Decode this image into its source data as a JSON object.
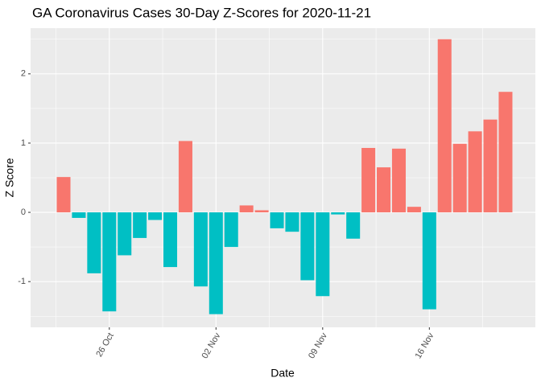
{
  "chart_data": {
    "type": "bar",
    "title": "GA Coronavirus Cases 30-Day Z-Scores for 2020-11-21",
    "x_label": "Date",
    "y_label": "Z Score",
    "categories": [
      null,
      null,
      null,
      "26 Oct",
      null,
      null,
      null,
      null,
      null,
      null,
      "02 Nov",
      null,
      null,
      null,
      null,
      null,
      null,
      "09 Nov",
      null,
      null,
      null,
      null,
      null,
      null,
      "16 Nov",
      null,
      null,
      null,
      null,
      null
    ],
    "values": [
      0.51,
      -0.08,
      -0.88,
      -1.43,
      -0.62,
      -0.37,
      -0.11,
      -0.79,
      1.03,
      -1.07,
      -1.47,
      -0.5,
      0.1,
      0.03,
      -0.23,
      -0.28,
      -0.98,
      -1.21,
      -0.03,
      -0.38,
      0.93,
      0.65,
      0.92,
      0.08,
      -1.4,
      2.5,
      0.99,
      1.17,
      1.34,
      1.74
    ],
    "positive_color": "#F8766D",
    "negative_color": "#00BFC4",
    "ylim": [
      -1.66,
      2.66
    ],
    "yticks": [
      -1,
      0,
      1,
      2
    ],
    "grid": true
  }
}
